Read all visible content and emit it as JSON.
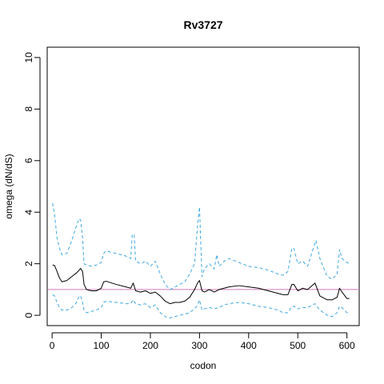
{
  "chart_data": {
    "type": "line",
    "title": "Rv3727",
    "xlabel": "codon",
    "ylabel": "omega (dN/dS)",
    "xlim": [
      -10,
      625
    ],
    "ylim": [
      -0.4,
      10.4
    ],
    "x_ticks": [
      0,
      100,
      200,
      300,
      400,
      500,
      600
    ],
    "y_ticks": [
      0,
      2,
      4,
      6,
      8,
      10
    ],
    "grid": false,
    "reference_line": {
      "y": 1,
      "color": "#d27ab8"
    },
    "series": [
      {
        "style": "solid",
        "color": "#000000",
        "points": [
          [
            1,
            1.95
          ],
          [
            5,
            1.93
          ],
          [
            10,
            1.7
          ],
          [
            15,
            1.45
          ],
          [
            20,
            1.3
          ],
          [
            30,
            1.35
          ],
          [
            40,
            1.5
          ],
          [
            50,
            1.65
          ],
          [
            55,
            1.75
          ],
          [
            58,
            1.82
          ],
          [
            62,
            1.7
          ],
          [
            65,
            1.2
          ],
          [
            70,
            1.0
          ],
          [
            80,
            0.95
          ],
          [
            90,
            0.95
          ],
          [
            100,
            1.05
          ],
          [
            105,
            1.3
          ],
          [
            110,
            1.32
          ],
          [
            130,
            1.2
          ],
          [
            150,
            1.1
          ],
          [
            160,
            1.05
          ],
          [
            165,
            1.25
          ],
          [
            170,
            0.95
          ],
          [
            180,
            0.9
          ],
          [
            190,
            0.95
          ],
          [
            200,
            0.85
          ],
          [
            210,
            0.9
          ],
          [
            220,
            0.75
          ],
          [
            230,
            0.55
          ],
          [
            240,
            0.45
          ],
          [
            250,
            0.5
          ],
          [
            260,
            0.5
          ],
          [
            270,
            0.55
          ],
          [
            280,
            0.7
          ],
          [
            290,
            1.0
          ],
          [
            296,
            1.25
          ],
          [
            300,
            1.35
          ],
          [
            305,
            0.95
          ],
          [
            310,
            0.9
          ],
          [
            320,
            1.0
          ],
          [
            330,
            0.9
          ],
          [
            340,
            1.0
          ],
          [
            350,
            1.05
          ],
          [
            360,
            1.1
          ],
          [
            380,
            1.15
          ],
          [
            400,
            1.1
          ],
          [
            420,
            1.05
          ],
          [
            440,
            0.95
          ],
          [
            460,
            0.85
          ],
          [
            470,
            0.8
          ],
          [
            480,
            0.8
          ],
          [
            488,
            1.2
          ],
          [
            492,
            1.2
          ],
          [
            500,
            0.95
          ],
          [
            510,
            1.05
          ],
          [
            520,
            1.0
          ],
          [
            535,
            1.25
          ],
          [
            545,
            0.75
          ],
          [
            560,
            0.6
          ],
          [
            570,
            0.6
          ],
          [
            580,
            0.7
          ],
          [
            585,
            1.05
          ],
          [
            590,
            0.9
          ],
          [
            600,
            0.65
          ],
          [
            605,
            0.65
          ]
        ]
      },
      {
        "style": "dashed",
        "color": "#3fa8e0",
        "points": [
          [
            1,
            4.35
          ],
          [
            5,
            3.9
          ],
          [
            10,
            3.0
          ],
          [
            15,
            2.6
          ],
          [
            20,
            2.35
          ],
          [
            30,
            2.4
          ],
          [
            40,
            2.9
          ],
          [
            50,
            3.5
          ],
          [
            55,
            3.75
          ],
          [
            58,
            3.7
          ],
          [
            62,
            3.0
          ],
          [
            65,
            2.0
          ],
          [
            70,
            1.95
          ],
          [
            80,
            1.9
          ],
          [
            90,
            1.95
          ],
          [
            100,
            2.05
          ],
          [
            105,
            2.4
          ],
          [
            110,
            2.5
          ],
          [
            130,
            2.4
          ],
          [
            150,
            2.3
          ],
          [
            160,
            2.2
          ],
          [
            163,
            3.1
          ],
          [
            167,
            3.15
          ],
          [
            170,
            2.1
          ],
          [
            180,
            2.0
          ],
          [
            190,
            2.1
          ],
          [
            200,
            1.9
          ],
          [
            210,
            2.1
          ],
          [
            220,
            1.6
          ],
          [
            230,
            1.2
          ],
          [
            240,
            1.0
          ],
          [
            250,
            1.1
          ],
          [
            260,
            1.2
          ],
          [
            270,
            1.3
          ],
          [
            280,
            1.6
          ],
          [
            290,
            2.0
          ],
          [
            296,
            3.5
          ],
          [
            300,
            4.2
          ],
          [
            305,
            1.5
          ],
          [
            310,
            1.8
          ],
          [
            320,
            2.0
          ],
          [
            330,
            1.8
          ],
          [
            335,
            2.35
          ],
          [
            340,
            1.9
          ],
          [
            350,
            2.1
          ],
          [
            360,
            2.2
          ],
          [
            380,
            2.05
          ],
          [
            400,
            1.9
          ],
          [
            420,
            1.85
          ],
          [
            440,
            1.75
          ],
          [
            460,
            1.6
          ],
          [
            470,
            1.55
          ],
          [
            480,
            1.7
          ],
          [
            488,
            2.6
          ],
          [
            492,
            2.6
          ],
          [
            500,
            2.0
          ],
          [
            510,
            2.1
          ],
          [
            520,
            1.9
          ],
          [
            530,
            2.5
          ],
          [
            537,
            2.9
          ],
          [
            545,
            2.2
          ],
          [
            560,
            1.5
          ],
          [
            570,
            1.4
          ],
          [
            580,
            1.6
          ],
          [
            585,
            2.55
          ],
          [
            590,
            2.2
          ],
          [
            600,
            2.05
          ],
          [
            605,
            2.0
          ]
        ]
      },
      {
        "style": "dashed",
        "color": "#3fa8e0",
        "points": [
          [
            1,
            0.8
          ],
          [
            5,
            0.75
          ],
          [
            10,
            0.5
          ],
          [
            15,
            0.3
          ],
          [
            20,
            0.2
          ],
          [
            30,
            0.2
          ],
          [
            40,
            0.3
          ],
          [
            50,
            0.5
          ],
          [
            55,
            0.75
          ],
          [
            58,
            0.75
          ],
          [
            62,
            0.5
          ],
          [
            65,
            0.2
          ],
          [
            70,
            0.1
          ],
          [
            80,
            0.15
          ],
          [
            90,
            0.2
          ],
          [
            100,
            0.3
          ],
          [
            105,
            0.5
          ],
          [
            110,
            0.55
          ],
          [
            130,
            0.5
          ],
          [
            150,
            0.45
          ],
          [
            160,
            0.45
          ],
          [
            165,
            0.6
          ],
          [
            170,
            0.45
          ],
          [
            180,
            0.4
          ],
          [
            190,
            0.45
          ],
          [
            200,
            0.3
          ],
          [
            210,
            0.4
          ],
          [
            220,
            0.1
          ],
          [
            230,
            -0.05
          ],
          [
            240,
            -0.1
          ],
          [
            250,
            -0.05
          ],
          [
            260,
            0.0
          ],
          [
            270,
            0.05
          ],
          [
            280,
            0.1
          ],
          [
            290,
            0.25
          ],
          [
            296,
            0.4
          ],
          [
            300,
            0.6
          ],
          [
            305,
            0.2
          ],
          [
            310,
            0.25
          ],
          [
            320,
            0.3
          ],
          [
            330,
            0.25
          ],
          [
            340,
            0.3
          ],
          [
            350,
            0.4
          ],
          [
            360,
            0.45
          ],
          [
            380,
            0.5
          ],
          [
            400,
            0.45
          ],
          [
            420,
            0.35
          ],
          [
            440,
            0.3
          ],
          [
            460,
            0.2
          ],
          [
            470,
            0.1
          ],
          [
            480,
            0.1
          ],
          [
            488,
            0.35
          ],
          [
            492,
            0.35
          ],
          [
            500,
            0.25
          ],
          [
            510,
            0.3
          ],
          [
            520,
            0.3
          ],
          [
            535,
            0.45
          ],
          [
            545,
            0.2
          ],
          [
            560,
            0.0
          ],
          [
            570,
            -0.05
          ],
          [
            580,
            0.1
          ],
          [
            585,
            0.35
          ],
          [
            590,
            0.3
          ],
          [
            600,
            0.1
          ],
          [
            605,
            0.1
          ]
        ]
      }
    ]
  }
}
